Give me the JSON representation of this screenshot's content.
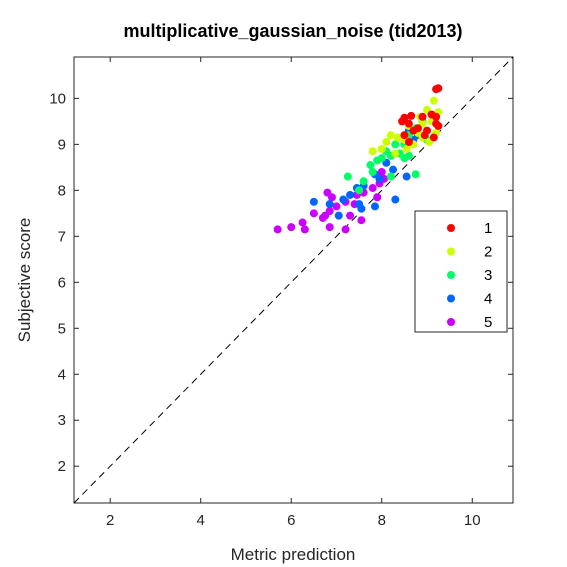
{
  "chart_data": {
    "type": "scatter",
    "title": "multiplicative_gaussian_noise (tid2013)",
    "xlabel": "Metric prediction",
    "ylabel": "Subjective score",
    "xlim": [
      1.2,
      10.9
    ],
    "ylim": [
      1.2,
      10.9
    ],
    "xticks": [
      2,
      4,
      6,
      8,
      10
    ],
    "yticks": [
      2,
      3,
      4,
      5,
      6,
      7,
      8,
      9,
      10
    ],
    "grid": false,
    "legend_position": "right",
    "reference_line": "y = x (dashed)",
    "series": [
      {
        "name": "1",
        "color": "#ff0000",
        "points": [
          [
            9.2,
            10.2
          ],
          [
            9.25,
            10.22
          ],
          [
            8.5,
            9.58
          ],
          [
            8.65,
            9.62
          ],
          [
            8.9,
            9.6
          ],
          [
            9.1,
            9.65
          ],
          [
            8.6,
            9.45
          ],
          [
            9.2,
            9.45
          ],
          [
            8.8,
            9.35
          ],
          [
            9.0,
            9.3
          ],
          [
            8.7,
            9.3
          ],
          [
            8.5,
            9.2
          ],
          [
            8.95,
            9.2
          ],
          [
            9.15,
            9.15
          ],
          [
            8.6,
            9.05
          ],
          [
            9.2,
            9.6
          ],
          [
            9.25,
            9.4
          ],
          [
            8.45,
            9.5
          ]
        ]
      },
      {
        "name": "2",
        "color": "#ccff00",
        "points": [
          [
            9.15,
            9.95
          ],
          [
            9.0,
            9.75
          ],
          [
            8.85,
            9.6
          ],
          [
            9.1,
            9.5
          ],
          [
            9.25,
            9.7
          ],
          [
            8.6,
            9.4
          ],
          [
            8.8,
            9.25
          ],
          [
            8.2,
            9.2
          ],
          [
            8.35,
            9.15
          ],
          [
            8.1,
            9.05
          ],
          [
            8.0,
            8.9
          ],
          [
            7.8,
            8.85
          ],
          [
            8.5,
            9.1
          ],
          [
            8.9,
            9.15
          ],
          [
            9.05,
            9.05
          ],
          [
            8.7,
            9.0
          ],
          [
            8.55,
            8.9
          ],
          [
            9.2,
            9.25
          ],
          [
            8.3,
            8.8
          ],
          [
            8.9,
            9.45
          ]
        ]
      },
      {
        "name": "3",
        "color": "#00ff66",
        "points": [
          [
            8.9,
            9.5
          ],
          [
            8.75,
            9.35
          ],
          [
            8.6,
            9.2
          ],
          [
            8.5,
            9.0
          ],
          [
            8.4,
            8.8
          ],
          [
            8.2,
            8.75
          ],
          [
            8.0,
            8.7
          ],
          [
            7.9,
            8.65
          ],
          [
            7.75,
            8.55
          ],
          [
            7.8,
            8.4
          ],
          [
            7.6,
            8.2
          ],
          [
            7.25,
            8.3
          ],
          [
            8.5,
            8.7
          ],
          [
            8.2,
            8.3
          ],
          [
            8.75,
            8.35
          ],
          [
            8.6,
            8.75
          ],
          [
            9.0,
            9.1
          ],
          [
            8.3,
            9.0
          ],
          [
            7.5,
            8.0
          ],
          [
            8.1,
            8.85
          ]
        ]
      },
      {
        "name": "4",
        "color": "#0066ff",
        "points": [
          [
            8.6,
            9.3
          ],
          [
            8.7,
            9.1
          ],
          [
            8.5,
            9.1
          ],
          [
            8.8,
            9.2
          ],
          [
            8.1,
            8.6
          ],
          [
            8.25,
            8.45
          ],
          [
            7.85,
            8.35
          ],
          [
            7.95,
            8.25
          ],
          [
            7.6,
            8.1
          ],
          [
            7.45,
            8.05
          ],
          [
            7.3,
            7.9
          ],
          [
            7.15,
            7.8
          ],
          [
            6.5,
            7.75
          ],
          [
            6.85,
            7.7
          ],
          [
            7.55,
            7.6
          ],
          [
            7.85,
            7.65
          ],
          [
            8.3,
            7.8
          ],
          [
            8.55,
            8.3
          ],
          [
            7.5,
            7.7
          ],
          [
            7.05,
            7.45
          ]
        ]
      },
      {
        "name": "5",
        "color": "#cc00ff",
        "points": [
          [
            8.0,
            8.4
          ],
          [
            7.95,
            8.15
          ],
          [
            7.8,
            8.05
          ],
          [
            7.6,
            7.95
          ],
          [
            7.45,
            7.9
          ],
          [
            7.2,
            7.75
          ],
          [
            7.0,
            7.65
          ],
          [
            6.85,
            7.55
          ],
          [
            6.75,
            7.45
          ],
          [
            6.5,
            7.5
          ],
          [
            6.25,
            7.3
          ],
          [
            6.0,
            7.2
          ],
          [
            5.7,
            7.15
          ],
          [
            6.3,
            7.15
          ],
          [
            6.85,
            7.2
          ],
          [
            7.3,
            7.45
          ],
          [
            7.55,
            7.35
          ],
          [
            7.2,
            7.15
          ],
          [
            6.7,
            7.4
          ],
          [
            6.9,
            7.85
          ],
          [
            6.8,
            7.95
          ],
          [
            8.05,
            8.25
          ],
          [
            7.9,
            7.85
          ],
          [
            7.4,
            7.7
          ]
        ]
      }
    ]
  }
}
